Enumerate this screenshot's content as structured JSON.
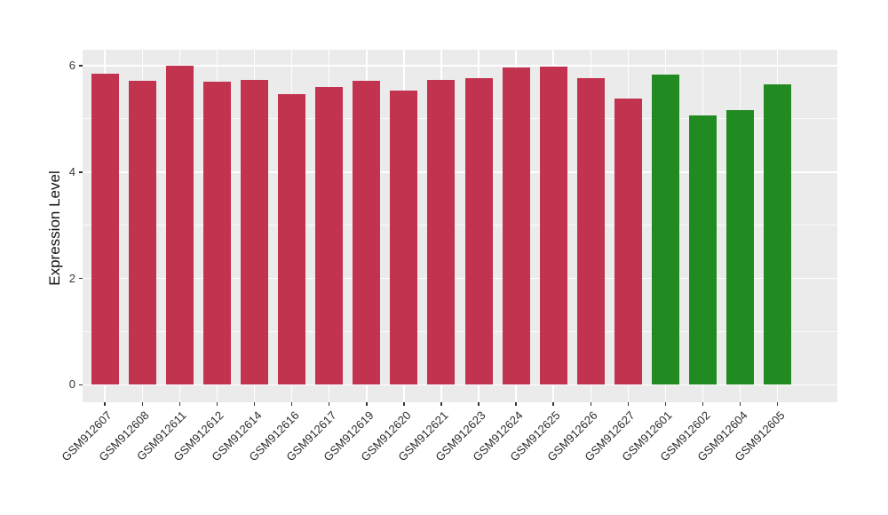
{
  "chart_data": {
    "type": "bar",
    "title": "",
    "xlabel": "",
    "ylabel": "Expression Level",
    "categories": [
      "GSM912607",
      "GSM912608",
      "GSM912611",
      "GSM912612",
      "GSM912614",
      "GSM912616",
      "GSM912617",
      "GSM912619",
      "GSM912620",
      "GSM912621",
      "GSM912623",
      "GSM912624",
      "GSM912625",
      "GSM912626",
      "GSM912627",
      "GSM912601",
      "GSM912602",
      "GSM912604",
      "GSM912605"
    ],
    "values": [
      5.85,
      5.72,
      6.0,
      5.7,
      5.73,
      5.46,
      5.6,
      5.71,
      5.54,
      5.73,
      5.77,
      5.97,
      5.99,
      5.76,
      5.39,
      5.83,
      5.07,
      5.16,
      5.65
    ],
    "bar_colors": [
      "#C23350",
      "#C23350",
      "#C23350",
      "#C23350",
      "#C23350",
      "#C23350",
      "#C23350",
      "#C23350",
      "#C23350",
      "#C23350",
      "#C23350",
      "#C23350",
      "#C23350",
      "#C23350",
      "#C23350",
      "#218B21",
      "#218B21",
      "#218B21",
      "#218B21"
    ],
    "group_colors": {
      "group1": "#C23350",
      "group2": "#218B21"
    },
    "yticks": [
      0,
      2,
      4,
      6
    ],
    "ytick_labels": [
      "0",
      "2",
      "4",
      "6"
    ],
    "yticks_minor": [
      1,
      3,
      5
    ],
    "ylim": [
      -0.32,
      6.3
    ],
    "x_label_rotation_deg": 45,
    "grid": "on",
    "legend": "none",
    "panel_background": "#EBEBEB",
    "grid_color": "#FFFFFF",
    "tick_color": "#333333"
  }
}
